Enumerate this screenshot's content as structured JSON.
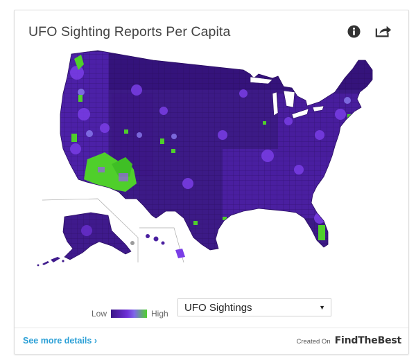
{
  "header": {
    "title": "UFO Sighting Reports Per Capita",
    "info_icon": "info-icon",
    "share_icon": "share-icon"
  },
  "legend": {
    "low_label": "Low",
    "high_label": "High",
    "colors": {
      "low": "#3a1587",
      "mid": "#6d2fd6",
      "high": "#4fd12d"
    }
  },
  "metric_select": {
    "selected": "UFO Sightings"
  },
  "footer": {
    "details_link": "See more details ›",
    "created_on": "Created On",
    "brand_part1": "FindThe",
    "brand_part2": "Best"
  }
}
